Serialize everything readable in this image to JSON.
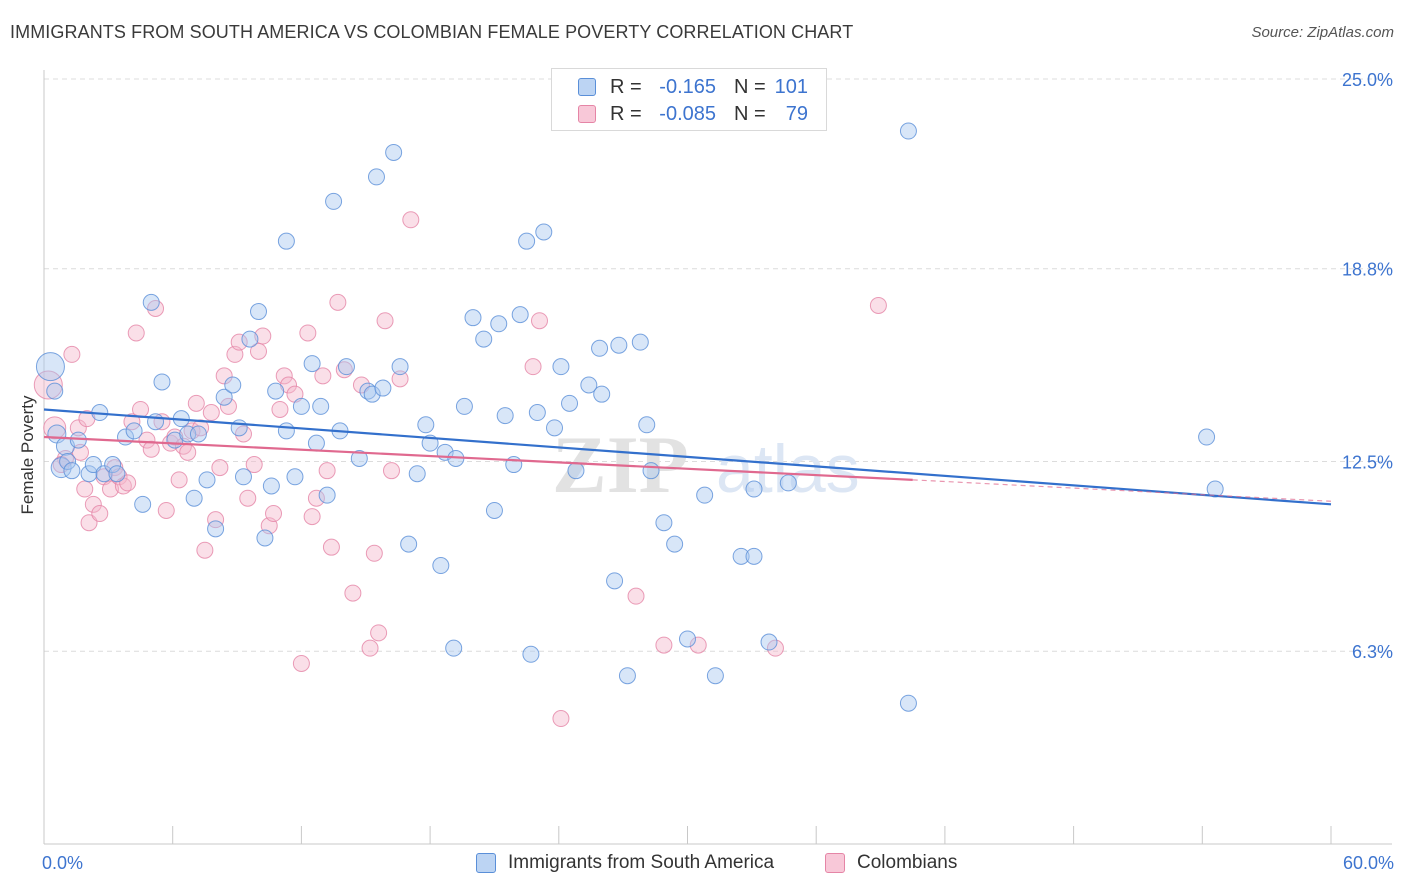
{
  "title": "IMMIGRANTS FROM SOUTH AMERICA VS COLOMBIAN FEMALE POVERTY CORRELATION CHART",
  "source": "Source: ZipAtlas.com",
  "watermark": {
    "zip": "ZIP",
    "atlas": "atlas"
  },
  "legend_top": [
    {
      "r_label": "R =",
      "r_value": "-0.165",
      "n_label": "N =",
      "n_value": "101"
    },
    {
      "r_label": "R =",
      "r_value": "-0.085",
      "n_label": "N =",
      "n_value": "79"
    }
  ],
  "legend_bottom": [
    "Immigrants from South America",
    "Colombians"
  ],
  "x_tick_labels": {
    "left": "0.0%",
    "right": "60.0%"
  },
  "colors": {
    "blue_fill": "#a9c8ef",
    "blue_stroke": "#5a8fd8",
    "blue_line": "#3370cc",
    "pink_fill": "#f5b8cc",
    "pink_stroke": "#e585a6",
    "pink_line": "#e0698f",
    "tick_label": "#3d74cf",
    "grid": "#dcdcdc"
  },
  "chart_data": {
    "type": "scatter",
    "title": "IMMIGRANTS FROM SOUTH AMERICA VS COLOMBIAN FEMALE POVERTY CORRELATION CHART",
    "xlabel": "",
    "ylabel": "Female Poverty",
    "xlim": [
      0,
      60
    ],
    "ylim": [
      0,
      26
    ],
    "grid": "horizontal dashed",
    "legend_position": "top-center",
    "y_ticks": [
      {
        "value": 6.3,
        "label": "6.3%"
      },
      {
        "value": 12.5,
        "label": "12.5%"
      },
      {
        "value": 18.8,
        "label": "18.8%"
      },
      {
        "value": 25.0,
        "label": "25.0%"
      }
    ],
    "x_ticks": [
      0,
      6,
      12,
      18,
      24,
      30,
      36,
      42,
      48,
      54,
      60
    ],
    "series": [
      {
        "name": "Immigrants from South America",
        "r": -0.165,
        "n": 101,
        "trend": {
          "x": [
            0,
            60
          ],
          "y": [
            14.2,
            11.1
          ]
        },
        "points": [
          [
            0.3,
            15.6,
            14
          ],
          [
            0.5,
            14.8,
            8
          ],
          [
            0.6,
            13.4,
            9
          ],
          [
            0.8,
            12.3,
            10
          ],
          [
            1.0,
            13.0,
            9
          ],
          [
            1.1,
            12.5,
            8
          ],
          [
            1.3,
            12.2,
            8
          ],
          [
            1.6,
            13.2,
            8
          ],
          [
            2.1,
            12.1,
            8
          ],
          [
            2.3,
            12.4,
            8
          ],
          [
            2.6,
            14.1,
            8
          ],
          [
            2.8,
            12.1,
            8
          ],
          [
            3.2,
            12.4,
            8
          ],
          [
            3.4,
            12.1,
            8
          ],
          [
            3.8,
            13.3,
            8
          ],
          [
            4.2,
            13.5,
            8
          ],
          [
            4.6,
            11.1,
            8
          ],
          [
            5.0,
            17.7,
            8
          ],
          [
            5.2,
            13.8,
            8
          ],
          [
            5.5,
            15.1,
            8
          ],
          [
            6.1,
            13.2,
            8
          ],
          [
            6.4,
            13.9,
            8
          ],
          [
            6.7,
            13.4,
            8
          ],
          [
            7.0,
            11.3,
            8
          ],
          [
            7.2,
            13.4,
            8
          ],
          [
            7.6,
            11.9,
            8
          ],
          [
            8.0,
            10.3,
            8
          ],
          [
            8.4,
            14.6,
            8
          ],
          [
            8.8,
            15.0,
            8
          ],
          [
            9.1,
            13.6,
            8
          ],
          [
            9.3,
            12.0,
            8
          ],
          [
            9.6,
            16.5,
            8
          ],
          [
            10.0,
            17.4,
            8
          ],
          [
            10.3,
            10.0,
            8
          ],
          [
            10.6,
            11.7,
            8
          ],
          [
            10.8,
            14.8,
            8
          ],
          [
            11.3,
            13.5,
            8
          ],
          [
            11.3,
            19.7,
            8
          ],
          [
            11.7,
            12.0,
            8
          ],
          [
            12.0,
            14.3,
            8
          ],
          [
            12.5,
            15.7,
            8
          ],
          [
            12.7,
            13.1,
            8
          ],
          [
            12.9,
            14.3,
            8
          ],
          [
            13.2,
            11.4,
            8
          ],
          [
            13.5,
            21.0,
            8
          ],
          [
            13.8,
            13.5,
            8
          ],
          [
            14.1,
            15.6,
            8
          ],
          [
            14.7,
            12.6,
            8
          ],
          [
            15.1,
            14.8,
            8
          ],
          [
            15.3,
            14.7,
            8
          ],
          [
            15.5,
            21.8,
            8
          ],
          [
            15.8,
            14.9,
            8
          ],
          [
            16.3,
            22.6,
            8
          ],
          [
            16.6,
            15.6,
            8
          ],
          [
            17.0,
            9.8,
            8
          ],
          [
            17.4,
            12.1,
            8
          ],
          [
            17.8,
            13.7,
            8
          ],
          [
            18.0,
            13.1,
            8
          ],
          [
            18.5,
            9.1,
            8
          ],
          [
            18.7,
            12.8,
            8
          ],
          [
            19.1,
            6.4,
            8
          ],
          [
            19.2,
            12.6,
            8
          ],
          [
            19.6,
            14.3,
            8
          ],
          [
            20.0,
            17.2,
            8
          ],
          [
            20.5,
            16.5,
            8
          ],
          [
            21.0,
            10.9,
            8
          ],
          [
            21.2,
            17.0,
            8
          ],
          [
            21.5,
            14.0,
            8
          ],
          [
            21.9,
            12.4,
            8
          ],
          [
            22.2,
            17.3,
            8
          ],
          [
            22.5,
            19.7,
            8
          ],
          [
            22.7,
            6.2,
            8
          ],
          [
            23.0,
            14.1,
            8
          ],
          [
            23.3,
            20.0,
            8
          ],
          [
            23.8,
            13.6,
            8
          ],
          [
            24.1,
            15.6,
            8
          ],
          [
            24.5,
            14.4,
            8
          ],
          [
            24.8,
            12.2,
            8
          ],
          [
            25.4,
            15.0,
            8
          ],
          [
            25.9,
            16.2,
            8
          ],
          [
            26.0,
            14.7,
            8
          ],
          [
            26.6,
            8.6,
            8
          ],
          [
            26.8,
            16.3,
            8
          ],
          [
            27.2,
            5.5,
            8
          ],
          [
            27.8,
            16.4,
            8
          ],
          [
            28.1,
            13.7,
            8
          ],
          [
            28.3,
            12.2,
            8
          ],
          [
            28.9,
            10.5,
            8
          ],
          [
            29.4,
            9.8,
            8
          ],
          [
            30.0,
            6.7,
            8
          ],
          [
            30.8,
            11.4,
            8
          ],
          [
            31.3,
            5.5,
            8
          ],
          [
            32.5,
            9.4,
            8
          ],
          [
            33.1,
            11.6,
            8
          ],
          [
            33.1,
            9.4,
            8
          ],
          [
            33.8,
            6.6,
            8
          ],
          [
            34.7,
            11.8,
            8
          ],
          [
            40.3,
            23.3,
            8
          ],
          [
            40.3,
            4.6,
            8
          ],
          [
            54.2,
            13.3,
            8
          ],
          [
            54.6,
            11.6,
            8
          ]
        ]
      },
      {
        "name": "Colombians",
        "r": -0.085,
        "n": 79,
        "trend": {
          "x": [
            0,
            40.5
          ],
          "y": [
            13.3,
            11.9
          ]
        },
        "trend_dashed": {
          "x": [
            40.5,
            60
          ],
          "y": [
            11.9,
            11.2
          ]
        },
        "points": [
          [
            0.2,
            15.0,
            14
          ],
          [
            0.5,
            13.6,
            11
          ],
          [
            1.0,
            12.6,
            8
          ],
          [
            1.3,
            16.0,
            8
          ],
          [
            1.6,
            13.6,
            8
          ],
          [
            1.9,
            11.6,
            8
          ],
          [
            2.1,
            10.5,
            8
          ],
          [
            2.3,
            11.1,
            8
          ],
          [
            2.6,
            10.8,
            8
          ],
          [
            2.8,
            12.0,
            8
          ],
          [
            3.1,
            11.6,
            8
          ],
          [
            3.3,
            12.3,
            8
          ],
          [
            3.5,
            12.0,
            8
          ],
          [
            3.7,
            11.7,
            8
          ],
          [
            3.9,
            11.8,
            8
          ],
          [
            4.1,
            13.8,
            8
          ],
          [
            4.3,
            16.7,
            8
          ],
          [
            4.5,
            14.2,
            8
          ],
          [
            4.8,
            13.2,
            8
          ],
          [
            5.0,
            12.9,
            8
          ],
          [
            5.2,
            17.5,
            8
          ],
          [
            5.5,
            13.8,
            8
          ],
          [
            5.7,
            10.9,
            8
          ],
          [
            5.9,
            13.1,
            8
          ],
          [
            6.1,
            13.3,
            8
          ],
          [
            6.3,
            11.9,
            8
          ],
          [
            6.5,
            13.0,
            8
          ],
          [
            6.7,
            12.8,
            8
          ],
          [
            6.9,
            13.5,
            8
          ],
          [
            7.1,
            14.4,
            8
          ],
          [
            7.3,
            13.6,
            8
          ],
          [
            7.5,
            9.6,
            8
          ],
          [
            7.8,
            14.1,
            8
          ],
          [
            8.0,
            10.6,
            8
          ],
          [
            8.2,
            12.3,
            8
          ],
          [
            8.4,
            15.3,
            8
          ],
          [
            8.6,
            14.3,
            8
          ],
          [
            8.9,
            16.0,
            8
          ],
          [
            9.1,
            16.4,
            8
          ],
          [
            9.3,
            13.4,
            8
          ],
          [
            9.5,
            11.3,
            8
          ],
          [
            9.8,
            12.4,
            8
          ],
          [
            10.0,
            16.1,
            8
          ],
          [
            10.2,
            16.6,
            8
          ],
          [
            10.5,
            10.4,
            8
          ],
          [
            10.7,
            10.8,
            8
          ],
          [
            11.0,
            14.2,
            8
          ],
          [
            11.2,
            15.3,
            8
          ],
          [
            11.4,
            15.0,
            8
          ],
          [
            11.7,
            14.7,
            8
          ],
          [
            12.0,
            5.9,
            8
          ],
          [
            12.3,
            16.7,
            8
          ],
          [
            12.5,
            10.7,
            8
          ],
          [
            12.7,
            11.3,
            8
          ],
          [
            13.0,
            15.3,
            8
          ],
          [
            13.2,
            12.2,
            8
          ],
          [
            13.4,
            9.7,
            8
          ],
          [
            13.7,
            17.7,
            8
          ],
          [
            14.0,
            15.5,
            8
          ],
          [
            14.4,
            8.2,
            8
          ],
          [
            14.8,
            15.0,
            8
          ],
          [
            15.2,
            6.4,
            8
          ],
          [
            15.4,
            9.5,
            8
          ],
          [
            15.6,
            6.9,
            8
          ],
          [
            15.9,
            17.1,
            8
          ],
          [
            16.2,
            12.2,
            8
          ],
          [
            16.6,
            15.2,
            8
          ],
          [
            17.1,
            20.4,
            8
          ],
          [
            22.8,
            15.6,
            8
          ],
          [
            23.1,
            17.1,
            8
          ],
          [
            24.1,
            4.1,
            8
          ],
          [
            27.6,
            8.1,
            8
          ],
          [
            28.9,
            6.5,
            8
          ],
          [
            30.5,
            6.5,
            8
          ],
          [
            34.1,
            6.4,
            8
          ],
          [
            38.9,
            17.6,
            8
          ],
          [
            2.0,
            13.9,
            8
          ],
          [
            0.8,
            12.4,
            8
          ],
          [
            1.7,
            12.8,
            8
          ]
        ]
      }
    ]
  }
}
